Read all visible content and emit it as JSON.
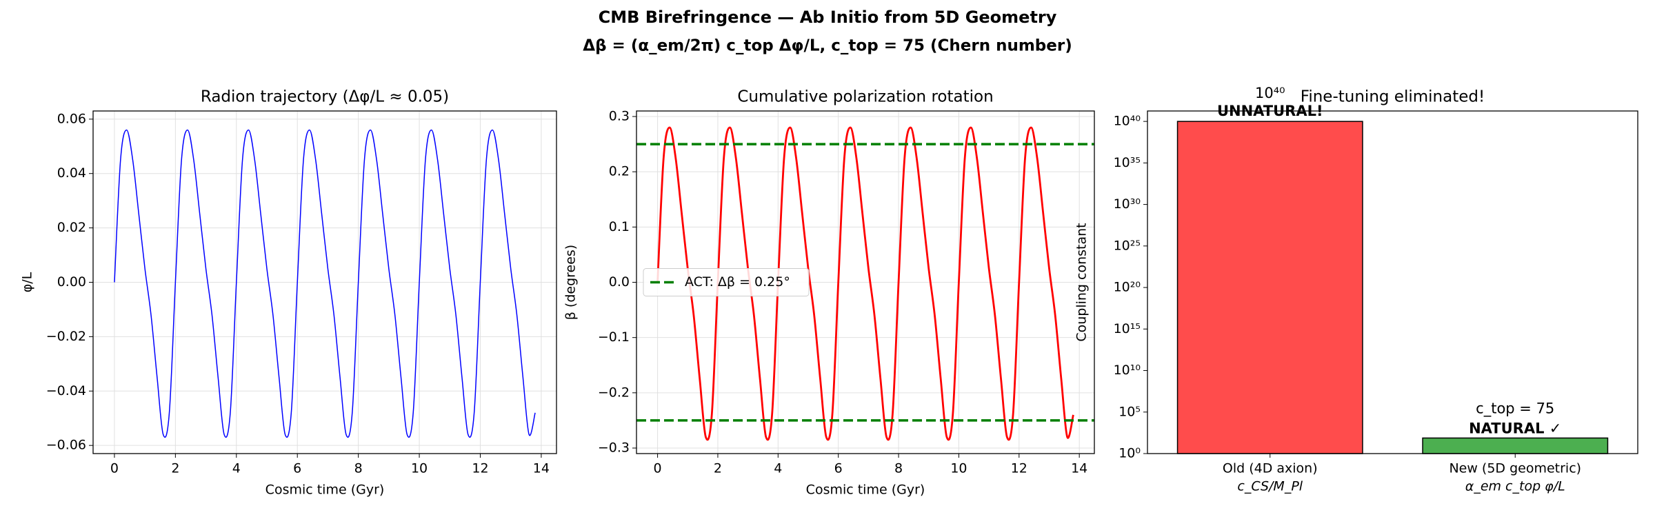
{
  "title": "CMB Birefringence — Ab Initio from 5D Geometry",
  "subtitle": "Δβ = (α_em/2π) c_top Δφ/L, c_top = 75 (Chern number)",
  "chart_data": [
    {
      "type": "line",
      "title": "Radion trajectory (Δφ/L ≈ 0.05)",
      "xlabel": "Cosmic time (Gyr)",
      "ylabel": "φ/L",
      "color": "#0000ff",
      "grid": true,
      "x": [
        0,
        0.2,
        0.4,
        0.6,
        0.8,
        1,
        1.2,
        1.4,
        1.6,
        1.8,
        2,
        2.2,
        2.4,
        2.6,
        2.8,
        3,
        3.2,
        3.4,
        3.6,
        3.8,
        4,
        4.2,
        4.4,
        4.6,
        4.8,
        5,
        5.2,
        5.4,
        5.6,
        5.8,
        6,
        6.2,
        6.4,
        6.6,
        6.8,
        7,
        7.2,
        7.4,
        7.6,
        7.8,
        8,
        8.2,
        8.4,
        8.6,
        8.8,
        9,
        9.2,
        9.4,
        9.6,
        9.8,
        10,
        10.2,
        10.4,
        10.6,
        10.8,
        11,
        11.2,
        11.4,
        11.6,
        11.8,
        12,
        12.2,
        12.4,
        12.6,
        12.8,
        13,
        13.2,
        13.4,
        13.6,
        13.8
      ],
      "values": [
        0,
        0.045,
        0.056,
        0.045,
        0.025,
        0.005,
        -0.012,
        -0.035,
        -0.056,
        -0.048,
        0,
        0.045,
        0.056,
        0.045,
        0.025,
        0.005,
        -0.012,
        -0.035,
        -0.056,
        -0.048,
        0,
        0.045,
        0.056,
        0.045,
        0.025,
        0.005,
        -0.012,
        -0.035,
        -0.056,
        -0.048,
        0,
        0.045,
        0.056,
        0.045,
        0.025,
        0.005,
        -0.012,
        -0.035,
        -0.056,
        -0.048,
        0,
        0.045,
        0.056,
        0.045,
        0.025,
        0.005,
        -0.012,
        -0.035,
        -0.056,
        -0.048,
        0,
        0.045,
        0.056,
        0.045,
        0.025,
        0.005,
        -0.012,
        -0.035,
        -0.056,
        -0.048,
        0,
        0.045,
        0.056,
        0.045,
        0.025,
        0.005,
        -0.012,
        -0.035,
        -0.056,
        -0.048
      ],
      "xlim": [
        -0.7,
        14.5
      ],
      "xticks": [
        0,
        2,
        4,
        6,
        8,
        10,
        12,
        14
      ],
      "ylim": [
        -0.063,
        0.063
      ],
      "yticks": [
        {
          "value": -0.06,
          "label": "−0.06"
        },
        {
          "value": -0.04,
          "label": "−0.04"
        },
        {
          "value": -0.02,
          "label": "−0.02"
        },
        {
          "value": 0,
          "label": "0.00"
        },
        {
          "value": 0.02,
          "label": "0.02"
        },
        {
          "value": 0.04,
          "label": "0.04"
        },
        {
          "value": 0.06,
          "label": "0.06"
        }
      ]
    },
    {
      "type": "line",
      "title": "Cumulative polarization rotation",
      "xlabel": "Cosmic time (Gyr)",
      "ylabel": "β (degrees)",
      "color": "#ff0000",
      "grid": true,
      "legend": "center left",
      "x": [
        0,
        0.2,
        0.4,
        0.6,
        0.8,
        1,
        1.2,
        1.4,
        1.6,
        1.8,
        2,
        2.2,
        2.4,
        2.6,
        2.8,
        3,
        3.2,
        3.4,
        3.6,
        3.8,
        4,
        4.2,
        4.4,
        4.6,
        4.8,
        5,
        5.2,
        5.4,
        5.6,
        5.8,
        6,
        6.2,
        6.4,
        6.6,
        6.8,
        7,
        7.2,
        7.4,
        7.6,
        7.8,
        8,
        8.2,
        8.4,
        8.6,
        8.8,
        9,
        9.2,
        9.4,
        9.6,
        9.8,
        10,
        10.2,
        10.4,
        10.6,
        10.8,
        11,
        11.2,
        11.4,
        11.6,
        11.8,
        12,
        12.2,
        12.4,
        12.6,
        12.8,
        13,
        13.2,
        13.4,
        13.6,
        13.8
      ],
      "values": [
        0,
        0.225,
        0.28,
        0.225,
        0.125,
        0.025,
        -0.06,
        -0.175,
        -0.28,
        -0.24,
        0,
        0.225,
        0.28,
        0.225,
        0.125,
        0.025,
        -0.06,
        -0.175,
        -0.28,
        -0.24,
        0,
        0.225,
        0.28,
        0.225,
        0.125,
        0.025,
        -0.06,
        -0.175,
        -0.28,
        -0.24,
        0,
        0.225,
        0.28,
        0.225,
        0.125,
        0.025,
        -0.06,
        -0.175,
        -0.28,
        -0.24,
        0,
        0.225,
        0.28,
        0.225,
        0.125,
        0.025,
        -0.06,
        -0.175,
        -0.28,
        -0.24,
        0,
        0.225,
        0.28,
        0.225,
        0.125,
        0.025,
        -0.06,
        -0.175,
        -0.28,
        -0.24,
        0,
        0.225,
        0.28,
        0.225,
        0.125,
        0.025,
        -0.06,
        -0.175,
        -0.28,
        -0.24
      ],
      "hlines": {
        "values": [
          0.25,
          -0.25
        ],
        "label": "ACT: Δβ = 0.25°",
        "color": "#007f00"
      },
      "xlim": [
        -0.7,
        14.5
      ],
      "xticks": [
        0,
        2,
        4,
        6,
        8,
        10,
        12,
        14
      ],
      "ylim": [
        -0.31,
        0.31
      ],
      "yticks": [
        {
          "value": -0.3,
          "label": "−0.3"
        },
        {
          "value": -0.2,
          "label": "−0.2"
        },
        {
          "value": -0.1,
          "label": "−0.1"
        },
        {
          "value": 0,
          "label": "0.0"
        },
        {
          "value": 0.1,
          "label": "0.1"
        },
        {
          "value": 0.2,
          "label": "0.2"
        },
        {
          "value": 0.3,
          "label": "0.3"
        }
      ]
    },
    {
      "type": "bar",
      "title": "Fine-tuning eliminated!",
      "ylabel": "Coupling constant",
      "log_scale": true,
      "categories": [
        "Old (4D axion)",
        "New (5D geometric)"
      ],
      "category_sublabels": [
        "c_CS/M_Pl",
        "α_em c_top φ/L"
      ],
      "values": [
        1e+40,
        75
      ],
      "colors": [
        "#ff4c4c",
        "#4caf50"
      ],
      "annotations": [
        {
          "text": "10⁴⁰",
          "color": "#ff0000"
        },
        {
          "text": "UNNATURAL!",
          "color": "#ff0000"
        },
        {
          "text": "c_top = 75",
          "color": "#007f00"
        },
        {
          "text": "NATURAL ✓",
          "color": "#007f00"
        }
      ],
      "ylim": [
        1,
        1.8e+41
      ],
      "yticks": [
        {
          "value": 1,
          "label": "10⁰"
        },
        {
          "value": 100000.0,
          "label": "10⁵"
        },
        {
          "value": 10000000000.0,
          "label": "10¹⁰"
        },
        {
          "value": 1000000000000000.0,
          "label": "10¹⁵"
        },
        {
          "value": 1e+20,
          "label": "10²⁰"
        },
        {
          "value": 1e+25,
          "label": "10²⁵"
        },
        {
          "value": 1e+30,
          "label": "10³⁰"
        },
        {
          "value": 1e+35,
          "label": "10³⁵"
        },
        {
          "value": 1e+40,
          "label": "10⁴⁰"
        }
      ]
    }
  ]
}
